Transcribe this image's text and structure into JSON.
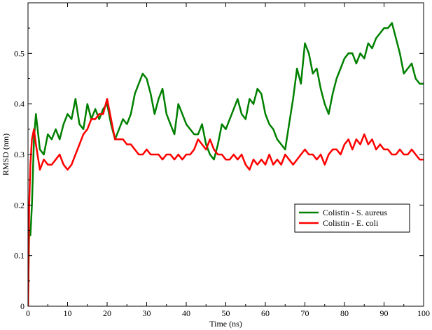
{
  "chart_data": {
    "type": "line",
    "title": "",
    "xlabel": "Time (ns)",
    "ylabel": "RMSD (nm)",
    "xlim": [
      0,
      100
    ],
    "ylim": [
      0,
      0.6
    ],
    "xticks": [
      0,
      10,
      20,
      30,
      40,
      50,
      60,
      70,
      80,
      90,
      100
    ],
    "yticks": [
      0,
      0.1,
      0.2,
      0.3,
      0.4,
      0.5
    ],
    "xtick_labels": [
      "0",
      "10",
      "20",
      "30",
      "40",
      "50",
      "60",
      "70",
      "80",
      "90",
      "100"
    ],
    "ytick_labels": [
      "0",
      "0.1",
      "0.2",
      "0.3",
      "0.4",
      "0.5"
    ],
    "grid": false,
    "legend_position": "middle-right",
    "series": [
      {
        "name": "Colistin - S. aureus",
        "color": "#008000",
        "x": [
          0,
          0.3,
          0.6,
          1,
          1.5,
          2,
          3,
          4,
          5,
          6,
          7,
          8,
          9,
          10,
          11,
          12,
          13,
          14,
          15,
          16,
          17,
          18,
          19,
          20,
          21,
          22,
          23,
          24,
          25,
          26,
          27,
          28,
          29,
          30,
          31,
          32,
          33,
          34,
          35,
          36,
          37,
          38,
          39,
          40,
          41,
          42,
          43,
          44,
          45,
          46,
          47,
          48,
          49,
          50,
          51,
          52,
          53,
          54,
          55,
          56,
          57,
          58,
          59,
          60,
          61,
          62,
          63,
          64,
          65,
          66,
          67,
          68,
          69,
          70,
          71,
          72,
          73,
          74,
          75,
          76,
          77,
          78,
          79,
          80,
          81,
          82,
          83,
          84,
          85,
          86,
          87,
          88,
          89,
          90,
          91,
          92,
          93,
          94,
          95,
          96,
          97,
          98,
          99,
          100
        ],
        "y": [
          0.0,
          0.15,
          0.14,
          0.2,
          0.33,
          0.38,
          0.31,
          0.3,
          0.34,
          0.33,
          0.35,
          0.33,
          0.36,
          0.38,
          0.37,
          0.41,
          0.36,
          0.35,
          0.4,
          0.37,
          0.39,
          0.37,
          0.39,
          0.4,
          0.36,
          0.33,
          0.35,
          0.37,
          0.36,
          0.38,
          0.42,
          0.44,
          0.46,
          0.45,
          0.42,
          0.38,
          0.41,
          0.43,
          0.38,
          0.36,
          0.34,
          0.4,
          0.38,
          0.36,
          0.35,
          0.34,
          0.34,
          0.36,
          0.32,
          0.3,
          0.29,
          0.32,
          0.36,
          0.35,
          0.37,
          0.39,
          0.41,
          0.38,
          0.37,
          0.41,
          0.4,
          0.43,
          0.42,
          0.38,
          0.36,
          0.35,
          0.33,
          0.32,
          0.31,
          0.36,
          0.41,
          0.47,
          0.44,
          0.52,
          0.5,
          0.46,
          0.47,
          0.43,
          0.4,
          0.38,
          0.42,
          0.45,
          0.47,
          0.49,
          0.5,
          0.5,
          0.48,
          0.5,
          0.49,
          0.52,
          0.51,
          0.53,
          0.54,
          0.55,
          0.55,
          0.56,
          0.53,
          0.5,
          0.46,
          0.47,
          0.48,
          0.45,
          0.44,
          0.44
        ]
      },
      {
        "name": "Colistin - E. coli",
        "color": "#ff0000",
        "x": [
          0,
          0.3,
          0.6,
          1,
          1.5,
          2,
          3,
          4,
          5,
          6,
          7,
          8,
          9,
          10,
          11,
          12,
          13,
          14,
          15,
          16,
          17,
          18,
          19,
          20,
          21,
          22,
          23,
          24,
          25,
          26,
          27,
          28,
          29,
          30,
          31,
          32,
          33,
          34,
          35,
          36,
          37,
          38,
          39,
          40,
          41,
          42,
          43,
          44,
          45,
          46,
          47,
          48,
          49,
          50,
          51,
          52,
          53,
          54,
          55,
          56,
          57,
          58,
          59,
          60,
          61,
          62,
          63,
          64,
          65,
          66,
          67,
          68,
          69,
          70,
          71,
          72,
          73,
          74,
          75,
          76,
          77,
          78,
          79,
          80,
          81,
          82,
          83,
          84,
          85,
          86,
          87,
          88,
          89,
          90,
          91,
          92,
          93,
          94,
          95,
          96,
          97,
          98,
          99,
          100
        ],
        "y": [
          0.0,
          0.2,
          0.28,
          0.33,
          0.35,
          0.32,
          0.27,
          0.29,
          0.28,
          0.28,
          0.29,
          0.3,
          0.28,
          0.27,
          0.28,
          0.3,
          0.32,
          0.34,
          0.35,
          0.37,
          0.37,
          0.38,
          0.38,
          0.41,
          0.37,
          0.33,
          0.33,
          0.33,
          0.32,
          0.32,
          0.31,
          0.3,
          0.3,
          0.31,
          0.3,
          0.3,
          0.3,
          0.29,
          0.3,
          0.3,
          0.29,
          0.3,
          0.29,
          0.3,
          0.3,
          0.31,
          0.33,
          0.32,
          0.31,
          0.33,
          0.31,
          0.3,
          0.3,
          0.29,
          0.29,
          0.3,
          0.29,
          0.3,
          0.28,
          0.27,
          0.29,
          0.28,
          0.29,
          0.28,
          0.3,
          0.28,
          0.29,
          0.28,
          0.3,
          0.29,
          0.28,
          0.29,
          0.3,
          0.31,
          0.3,
          0.3,
          0.29,
          0.3,
          0.28,
          0.3,
          0.31,
          0.31,
          0.3,
          0.32,
          0.33,
          0.31,
          0.33,
          0.32,
          0.34,
          0.32,
          0.33,
          0.31,
          0.32,
          0.31,
          0.31,
          0.3,
          0.3,
          0.31,
          0.3,
          0.3,
          0.31,
          0.3,
          0.29,
          0.29
        ]
      }
    ]
  }
}
